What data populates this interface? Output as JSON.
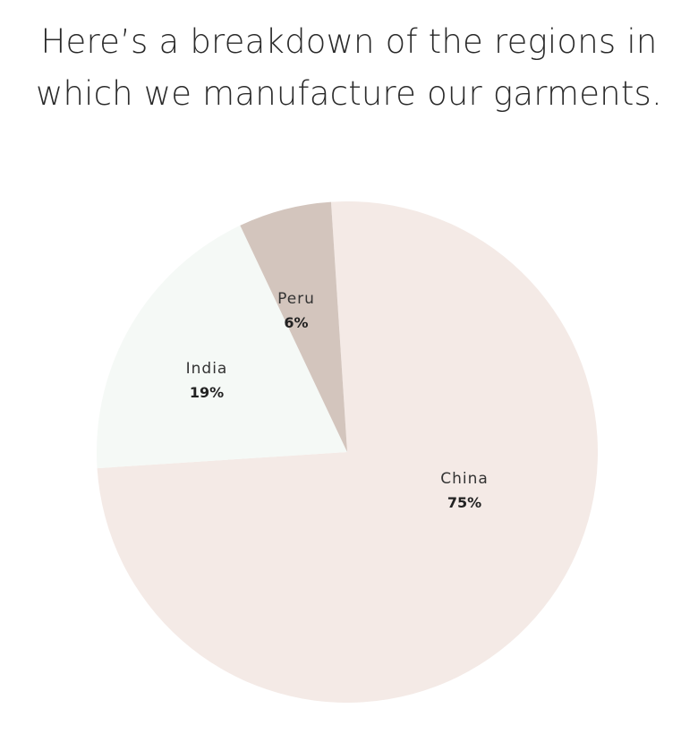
{
  "chart_data": {
    "type": "pie",
    "title": "Here’s a breakdown of the regions in which we manufacture our garments.",
    "slices": [
      {
        "label": "China",
        "value": 75,
        "value_label": "75%",
        "color": "#f4eae6"
      },
      {
        "label": "India",
        "value": 19,
        "value_label": "19%",
        "color": "#f5f9f6"
      },
      {
        "label": "Peru",
        "value": 6,
        "value_label": "6%",
        "color": "#d3c5bd"
      }
    ],
    "legend": "none"
  }
}
